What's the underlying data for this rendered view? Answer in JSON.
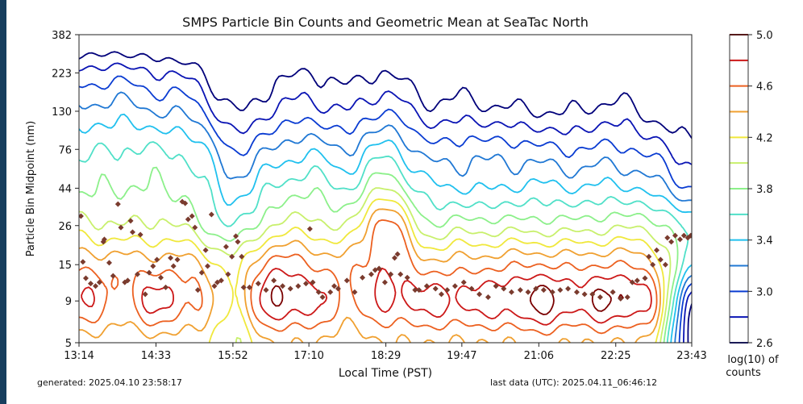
{
  "chart_data": {
    "type": "contour",
    "title": "SMPS Particle Bin Counts and Geometric Mean at  SeaTac North",
    "xlabel": "Local Time (PST)",
    "ylabel": "Particle Bin Midpoint (nm)",
    "x_ticks": [
      "13:14",
      "14:33",
      "15:52",
      "17:10",
      "18:29",
      "19:47",
      "21:06",
      "22:25",
      "23:43"
    ],
    "y_ticks": [
      5,
      9,
      15,
      26,
      44,
      76,
      130,
      223,
      382
    ],
    "y_scale": "log",
    "xlim": [
      "13:14",
      "23:43"
    ],
    "ylim": [
      5,
      382
    ],
    "colorbar": {
      "label_line1": "log(10) of",
      "label_line2": "counts",
      "tick_labels": [
        "2.6",
        "3.0",
        "3.4",
        "3.8",
        "4.2",
        "4.6",
        "5.0"
      ],
      "levels": [
        2.6,
        2.8,
        3.0,
        3.2,
        3.4,
        3.6,
        3.8,
        4.0,
        4.2,
        4.4,
        4.6,
        4.8,
        5.0
      ],
      "colors": [
        "#00007a",
        "#0a14b4",
        "#0a3cd2",
        "#2078d4",
        "#20c0ee",
        "#50e0c8",
        "#8cf08a",
        "#c8f06c",
        "#f0e83c",
        "#f0a030",
        "#ec6020",
        "#cc1818",
        "#7a0000"
      ],
      "colormap": "jet"
    },
    "grid": {
      "times": [
        "13:14",
        "13:53",
        "14:33",
        "15:13",
        "15:52",
        "16:31",
        "17:10",
        "17:50",
        "18:29",
        "19:08",
        "19:47",
        "20:27",
        "21:06",
        "21:46",
        "22:25",
        "23:04",
        "23:43"
      ],
      "sizes_nm": [
        5,
        9,
        15,
        26,
        44,
        76,
        130,
        223,
        382
      ],
      "log10_counts": [
        [
          4.3,
          4.85,
          4.55,
          4.1,
          3.75,
          3.55,
          3.25,
          2.85,
          2.3
        ],
        [
          4.3,
          4.55,
          4.5,
          4.0,
          3.8,
          3.6,
          3.3,
          2.9,
          2.35
        ],
        [
          4.3,
          4.85,
          4.5,
          4.05,
          3.8,
          3.6,
          3.2,
          2.8,
          2.3
        ],
        [
          4.3,
          4.62,
          4.45,
          3.9,
          3.7,
          3.5,
          3.1,
          2.7,
          2.2
        ],
        [
          4.0,
          4.25,
          4.1,
          3.6,
          3.3,
          3.0,
          2.6,
          2.3,
          2.0
        ],
        [
          4.4,
          4.95,
          4.7,
          4.0,
          3.6,
          3.2,
          2.8,
          2.5,
          2.1
        ],
        [
          4.4,
          4.88,
          4.6,
          4.1,
          3.75,
          3.35,
          2.9,
          2.6,
          2.2
        ],
        [
          4.3,
          4.6,
          4.5,
          4.0,
          3.6,
          3.2,
          2.8,
          2.5,
          2.1
        ],
        [
          4.4,
          4.82,
          4.78,
          4.72,
          4.0,
          3.5,
          3.0,
          2.6,
          2.2
        ],
        [
          4.4,
          4.85,
          4.5,
          3.9,
          3.5,
          3.1,
          2.7,
          2.4,
          2.1
        ],
        [
          4.4,
          4.86,
          4.5,
          3.9,
          3.4,
          3.1,
          2.7,
          2.4,
          2.0
        ],
        [
          4.4,
          4.9,
          4.55,
          3.9,
          3.4,
          3.1,
          2.65,
          2.3,
          2.0
        ],
        [
          4.45,
          5.05,
          4.6,
          3.9,
          3.45,
          3.05,
          2.6,
          2.3,
          2.0
        ],
        [
          4.4,
          4.9,
          4.55,
          3.9,
          3.4,
          3.0,
          2.6,
          2.3,
          2.0
        ],
        [
          4.4,
          5.02,
          4.6,
          3.95,
          3.45,
          3.05,
          2.7,
          2.35,
          2.0
        ],
        [
          4.2,
          4.65,
          4.4,
          3.9,
          3.3,
          2.9,
          2.5,
          2.2,
          1.9
        ],
        [
          2.5,
          2.7,
          3.4,
          3.5,
          3.0,
          2.7,
          2.4,
          2.1,
          1.8
        ]
      ]
    },
    "geometric_mean": {
      "marker_color": "#7a3b2e",
      "points": [
        [
          "13:16",
          29.7
        ],
        [
          "13:18",
          15.6
        ],
        [
          "13:21",
          12.4
        ],
        [
          "13:26",
          11.5
        ],
        [
          "13:31",
          11.1
        ],
        [
          "13:35",
          11.7
        ],
        [
          "13:39",
          20.7
        ],
        [
          "13:40",
          21.4
        ],
        [
          "13:45",
          15.4
        ],
        [
          "13:49",
          12.8
        ],
        [
          "13:54",
          35.2
        ],
        [
          "13:57",
          25.3
        ],
        [
          "14:01",
          11.7
        ],
        [
          "14:04",
          12.0
        ],
        [
          "14:07",
          27.8
        ],
        [
          "14:09",
          23.7
        ],
        [
          "14:14",
          13.1
        ],
        [
          "14:17",
          22.9
        ],
        [
          "14:22",
          9.9
        ],
        [
          "14:26",
          13.4
        ],
        [
          "14:30",
          14.7
        ],
        [
          "14:34",
          16.1
        ],
        [
          "14:38",
          12.5
        ],
        [
          "14:43",
          10.9
        ],
        [
          "14:48",
          16.5
        ],
        [
          "14:51",
          14.7
        ],
        [
          "14:55",
          16.1
        ],
        [
          "15:00",
          36.4
        ],
        [
          "15:03",
          35.6
        ],
        [
          "15:06",
          28.4
        ],
        [
          "15:10",
          29.7
        ],
        [
          "15:13",
          25.3
        ],
        [
          "15:16",
          10.5
        ],
        [
          "15:20",
          13.4
        ],
        [
          "15:24",
          18.4
        ],
        [
          "15:26",
          14.7
        ],
        [
          "15:30",
          30.4
        ],
        [
          "15:33",
          11.1
        ],
        [
          "15:36",
          11.7
        ],
        [
          "15:40",
          12.0
        ],
        [
          "15:45",
          19.3
        ],
        [
          "15:47",
          13.1
        ],
        [
          "15:51",
          16.8
        ],
        [
          "15:55",
          22.4
        ],
        [
          "15:57",
          20.7
        ],
        [
          "16:01",
          16.8
        ],
        [
          "16:03",
          10.9
        ],
        [
          "16:09",
          10.9
        ],
        [
          "16:18",
          11.5
        ],
        [
          "16:26",
          10.5
        ],
        [
          "16:34",
          12.0
        ],
        [
          "16:43",
          11.1
        ],
        [
          "16:51",
          10.7
        ],
        [
          "16:59",
          11.1
        ],
        [
          "17:07",
          11.5
        ],
        [
          "17:11",
          24.8
        ],
        [
          "17:14",
          11.7
        ],
        [
          "17:20",
          10.2
        ],
        [
          "17:24",
          9.5
        ],
        [
          "17:32",
          10.2
        ],
        [
          "17:36",
          11.1
        ],
        [
          "17:40",
          10.7
        ],
        [
          "17:49",
          12.0
        ],
        [
          "17:57",
          10.2
        ],
        [
          "18:05",
          12.5
        ],
        [
          "18:14",
          13.1
        ],
        [
          "18:18",
          13.9
        ],
        [
          "18:22",
          14.2
        ],
        [
          "18:28",
          11.7
        ],
        [
          "18:34",
          13.1
        ],
        [
          "18:38",
          16.5
        ],
        [
          "18:41",
          17.4
        ],
        [
          "18:44",
          13.1
        ],
        [
          "18:51",
          12.5
        ],
        [
          "18:59",
          10.5
        ],
        [
          "19:03",
          10.5
        ],
        [
          "19:11",
          11.1
        ],
        [
          "19:20",
          10.7
        ],
        [
          "19:26",
          9.9
        ],
        [
          "19:32",
          10.5
        ],
        [
          "19:40",
          11.1
        ],
        [
          "19:49",
          11.7
        ],
        [
          "19:57",
          10.7
        ],
        [
          "20:05",
          9.9
        ],
        [
          "20:14",
          9.5
        ],
        [
          "20:22",
          11.1
        ],
        [
          "20:30",
          10.7
        ],
        [
          "20:38",
          10.2
        ],
        [
          "20:47",
          10.5
        ],
        [
          "20:55",
          10.2
        ],
        [
          "21:03",
          10.7
        ],
        [
          "21:11",
          10.5
        ],
        [
          "21:20",
          10.2
        ],
        [
          "21:28",
          10.5
        ],
        [
          "21:36",
          10.7
        ],
        [
          "21:45",
          10.2
        ],
        [
          "21:53",
          9.9
        ],
        [
          "22:01",
          9.9
        ],
        [
          "22:09",
          9.5
        ],
        [
          "22:22",
          10.2
        ],
        [
          "22:30",
          9.3
        ],
        [
          "22:37",
          9.5
        ],
        [
          "22:42",
          11.7
        ],
        [
          "22:47",
          12.0
        ],
        [
          "22:55",
          12.4
        ],
        [
          "22:59",
          16.8
        ],
        [
          "23:03",
          15.0
        ],
        [
          "23:07",
          18.4
        ],
        [
          "23:11",
          16.1
        ],
        [
          "23:16",
          15.0
        ],
        [
          "23:18",
          21.9
        ],
        [
          "23:22",
          20.7
        ],
        [
          "23:26",
          22.6
        ],
        [
          "23:31",
          21.4
        ],
        [
          "23:35",
          22.6
        ],
        [
          "23:39",
          21.9
        ],
        [
          "23:42",
          22.6
        ]
      ]
    }
  },
  "footer": {
    "generated": "generated: 2025.04.10 23:58:17",
    "last_data": "last data (UTC): 2025.04.11_06:46:12"
  }
}
